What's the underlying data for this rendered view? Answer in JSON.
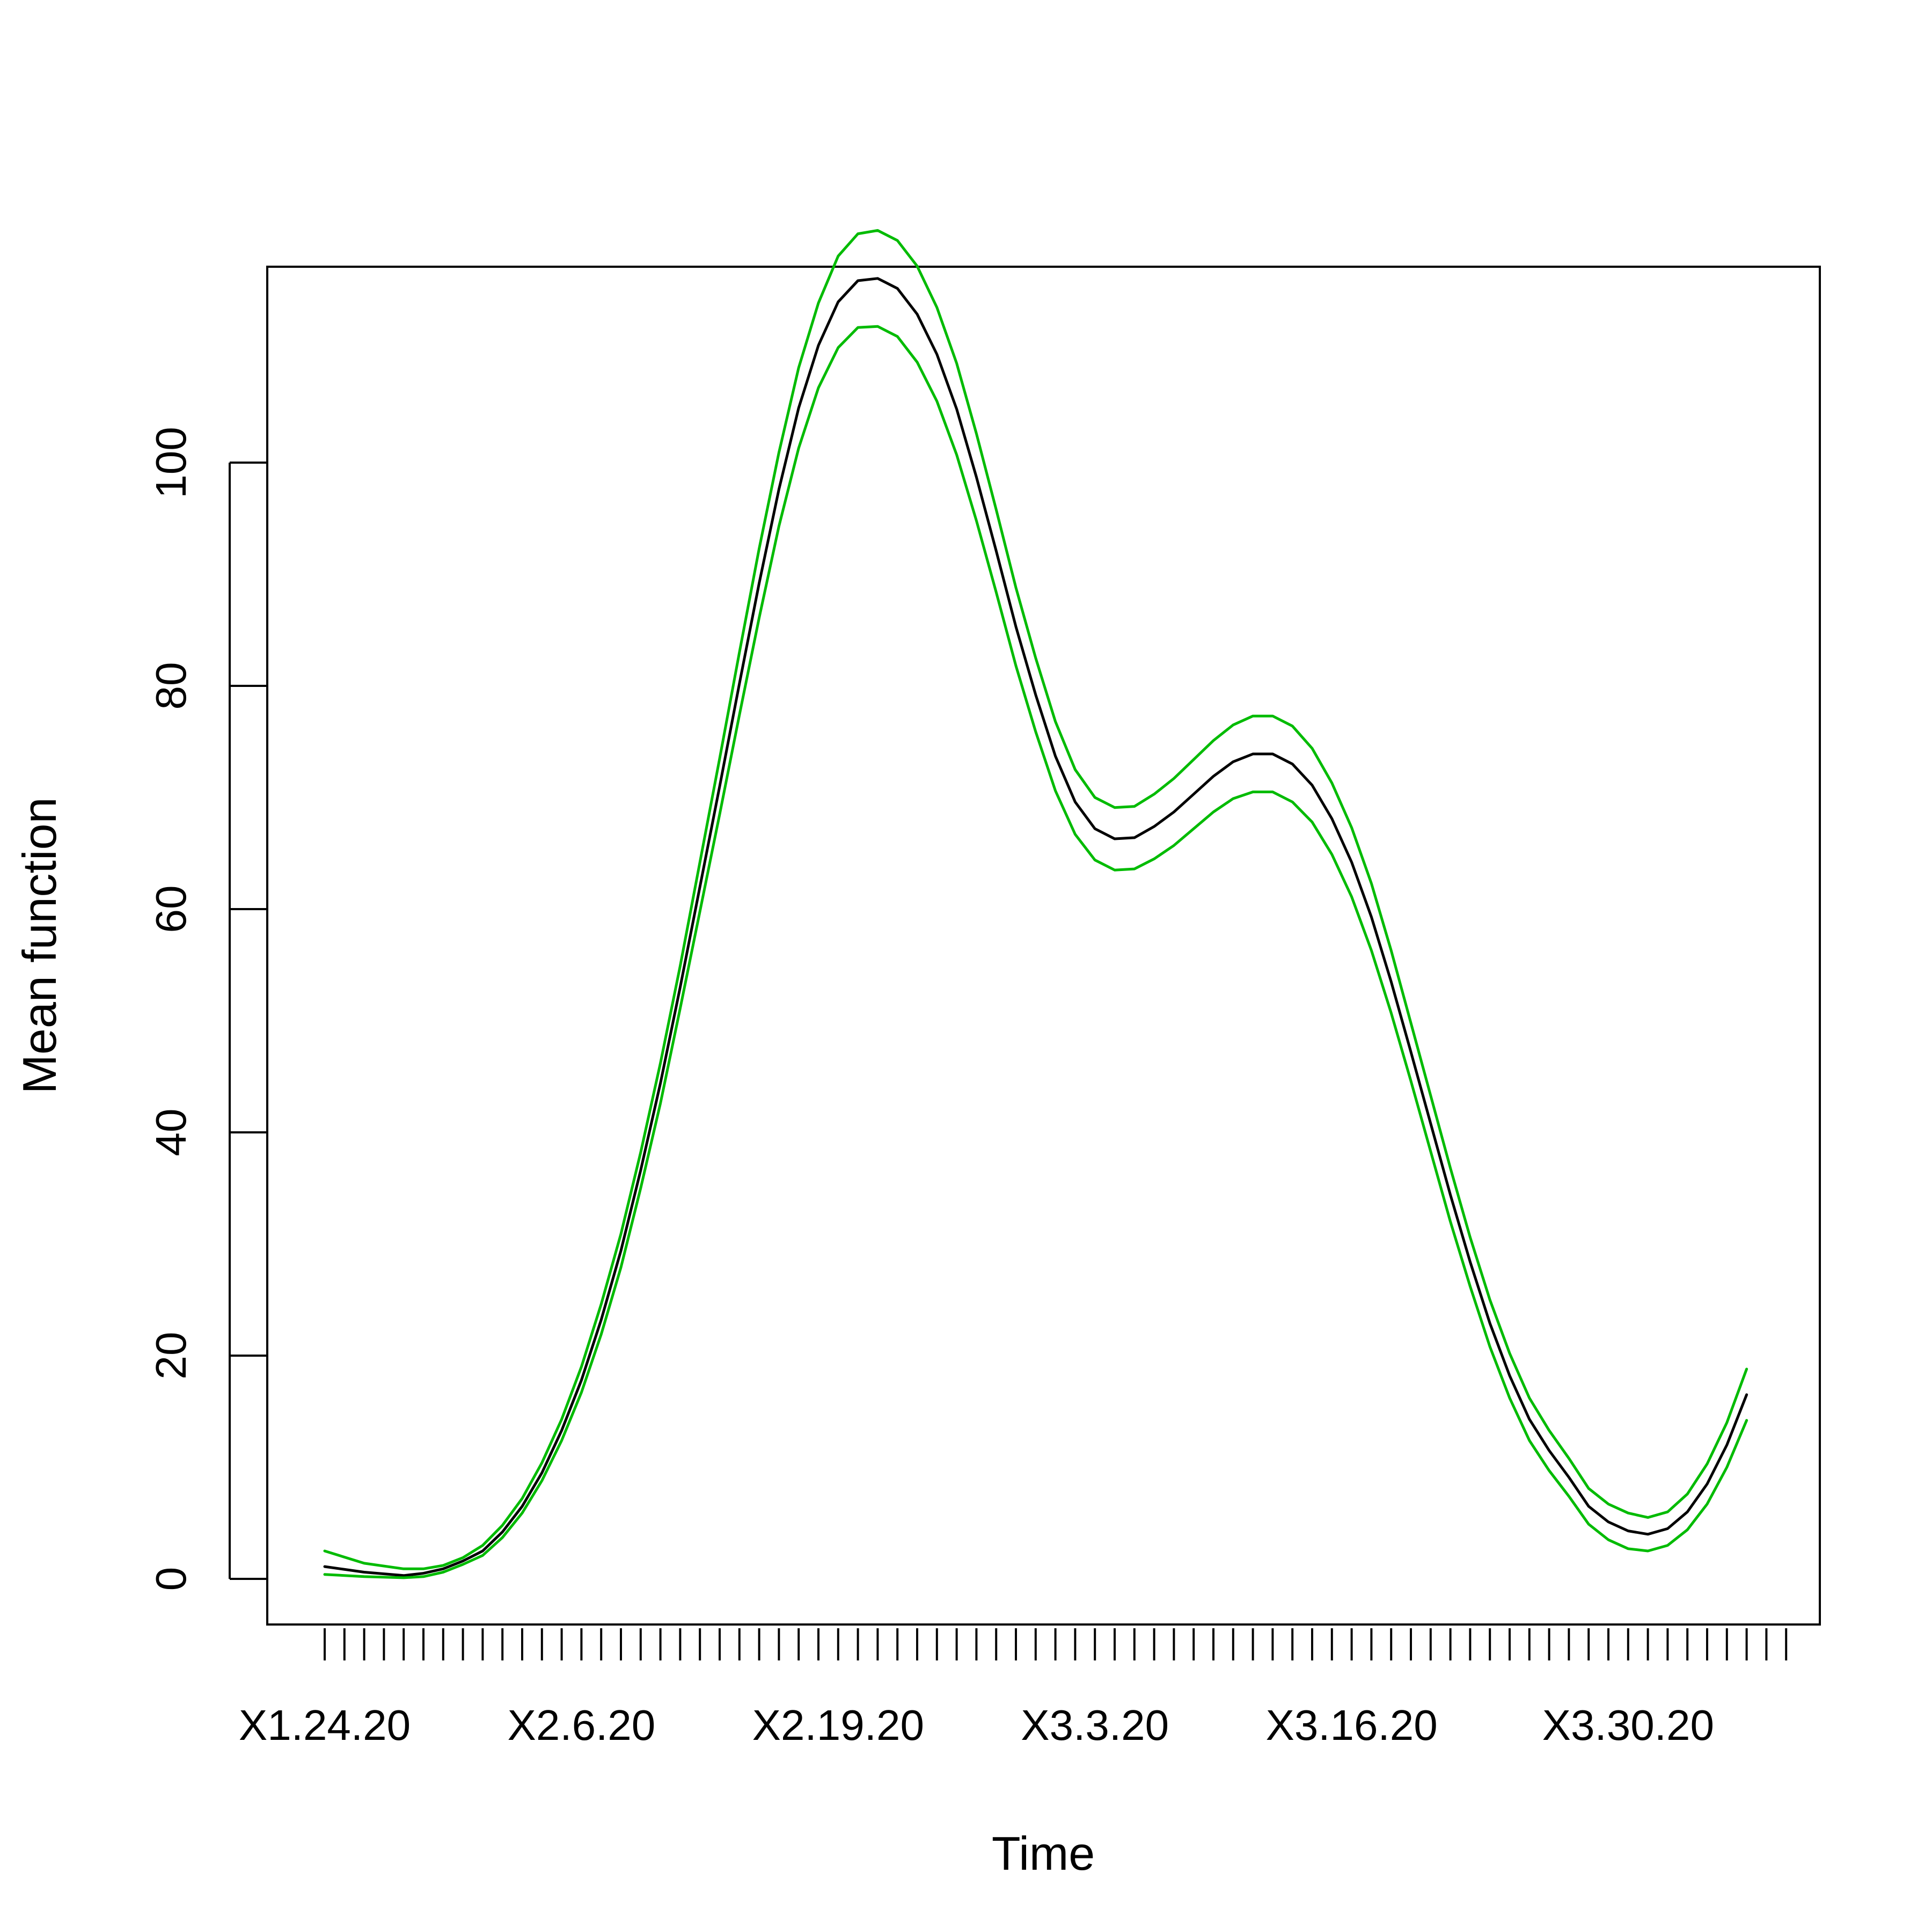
{
  "chart_data": {
    "type": "line",
    "title": "",
    "xlabel": "Time",
    "ylabel": "Mean function",
    "ylim": [
      -4.2,
      117.5
    ],
    "yticks": [
      0,
      20,
      40,
      60,
      80,
      100
    ],
    "x_tick_labels": [
      "X1.24.20",
      "X2.6.20",
      "X2.19.20",
      "X3.3.20",
      "X3.16.20",
      "X3.30.20"
    ],
    "x_tick_label_days": [
      0,
      13,
      26,
      39,
      52,
      66
    ],
    "x_minor_tick_days": [
      0,
      1,
      2,
      3,
      4,
      5,
      6,
      7,
      8,
      9,
      10,
      11,
      12,
      13,
      14,
      15,
      16,
      17,
      18,
      19,
      20,
      21,
      22,
      23,
      24,
      25,
      26,
      27,
      28,
      29,
      30,
      31,
      32,
      33,
      34,
      35,
      36,
      37,
      38,
      39,
      40,
      41,
      42,
      43,
      44,
      45,
      46,
      47,
      48,
      49,
      50,
      51,
      52,
      53,
      54,
      55,
      56,
      57,
      58,
      59,
      60,
      61,
      62,
      63,
      64,
      65,
      66,
      67,
      68,
      69,
      70,
      71,
      72,
      73,
      74
    ],
    "grid": false,
    "series": [
      {
        "role": "mean",
        "color": "#000000",
        "x": [
          0,
          2,
          4,
          5,
          6,
          7,
          8,
          9,
          10,
          11,
          12,
          13,
          14,
          15,
          16,
          17,
          18,
          19,
          20,
          21,
          22,
          23,
          24,
          25,
          26,
          27,
          28,
          29,
          30,
          31,
          32,
          33,
          34,
          35,
          36,
          37,
          38,
          39,
          40,
          41,
          42,
          43,
          44,
          45,
          46,
          47,
          48,
          49,
          50,
          51,
          52,
          53,
          54,
          55,
          56,
          57,
          58,
          59,
          60,
          61,
          62,
          63,
          64,
          65,
          66,
          67,
          68,
          69,
          70,
          71,
          72
        ],
        "values": [
          1.1,
          0.6,
          0.3,
          0.5,
          0.9,
          1.6,
          2.5,
          4.2,
          6.5,
          9.5,
          13.3,
          17.8,
          23.2,
          29.4,
          36.6,
          44.4,
          53.0,
          62.0,
          71.0,
          80.2,
          89.2,
          97.6,
          104.9,
          110.5,
          114.4,
          116.3,
          116.5,
          115.6,
          113.3,
          109.7,
          104.8,
          98.7,
          92.1,
          85.3,
          79.2,
          73.7,
          69.6,
          67.2,
          66.3,
          66.4,
          67.4,
          68.7,
          70.3,
          71.9,
          73.2,
          73.9,
          73.9,
          73.0,
          71.1,
          68.1,
          64.2,
          59.3,
          53.5,
          47.2,
          40.8,
          34.4,
          28.4,
          22.9,
          18.2,
          14.3,
          11.5,
          9.1,
          6.5,
          5.1,
          4.3,
          4.0,
          4.5,
          6.0,
          8.5,
          12.0,
          16.5
        ]
      },
      {
        "role": "upper band",
        "color": "#00bb00",
        "x": [
          0,
          2,
          4,
          5,
          6,
          7,
          8,
          9,
          10,
          11,
          12,
          13,
          14,
          15,
          16,
          17,
          18,
          19,
          20,
          21,
          22,
          23,
          24,
          25,
          26,
          27,
          28,
          29,
          30,
          31,
          32,
          33,
          34,
          35,
          36,
          37,
          38,
          39,
          40,
          41,
          42,
          43,
          44,
          45,
          46,
          47,
          48,
          49,
          50,
          51,
          52,
          53,
          54,
          55,
          56,
          57,
          58,
          59,
          60,
          61,
          62,
          63,
          64,
          65,
          66,
          67,
          68,
          69,
          70,
          71,
          72
        ],
        "values": [
          2.5,
          1.4,
          0.9,
          0.9,
          1.2,
          1.9,
          3.0,
          4.8,
          7.2,
          10.4,
          14.3,
          19.0,
          24.6,
          30.9,
          38.2,
          46.2,
          54.9,
          64.2,
          73.5,
          83.0,
          92.3,
          100.9,
          108.5,
          114.3,
          118.5,
          120.5,
          120.8,
          119.9,
          117.6,
          113.9,
          108.9,
          102.6,
          95.8,
          88.8,
          82.5,
          76.8,
          72.5,
          70.0,
          69.1,
          69.2,
          70.3,
          71.7,
          73.4,
          75.1,
          76.5,
          77.3,
          77.3,
          76.4,
          74.4,
          71.3,
          67.3,
          62.3,
          56.3,
          49.8,
          43.3,
          36.8,
          30.6,
          25.0,
          20.2,
          16.2,
          13.3,
          10.8,
          8.1,
          6.7,
          5.9,
          5.5,
          6.0,
          7.6,
          10.3,
          14.0,
          18.8
        ]
      },
      {
        "role": "lower band",
        "color": "#00bb00",
        "x": [
          0,
          2,
          4,
          5,
          6,
          7,
          8,
          9,
          10,
          11,
          12,
          13,
          14,
          15,
          16,
          17,
          18,
          19,
          20,
          21,
          22,
          23,
          24,
          25,
          26,
          27,
          28,
          29,
          30,
          31,
          32,
          33,
          34,
          35,
          36,
          37,
          38,
          39,
          40,
          41,
          42,
          43,
          44,
          45,
          46,
          47,
          48,
          49,
          50,
          51,
          52,
          53,
          54,
          55,
          56,
          57,
          58,
          59,
          60,
          61,
          62,
          63,
          64,
          65,
          66,
          67,
          68,
          69,
          70,
          71,
          72
        ],
        "values": [
          0.4,
          0.2,
          0.1,
          0.2,
          0.6,
          1.3,
          2.1,
          3.7,
          5.9,
          8.8,
          12.4,
          16.7,
          21.9,
          27.9,
          35.0,
          42.6,
          51.1,
          59.8,
          68.5,
          77.4,
          86.1,
          94.3,
          101.3,
          106.7,
          110.3,
          112.1,
          112.2,
          111.3,
          109.0,
          105.5,
          100.7,
          94.8,
          88.4,
          81.8,
          75.9,
          70.6,
          66.7,
          64.4,
          63.5,
          63.6,
          64.5,
          65.7,
          67.2,
          68.7,
          69.9,
          70.5,
          70.5,
          69.6,
          67.8,
          64.9,
          61.1,
          56.3,
          50.7,
          44.6,
          38.3,
          32.0,
          26.2,
          20.8,
          16.2,
          12.4,
          9.7,
          7.4,
          4.9,
          3.5,
          2.7,
          2.5,
          3.0,
          4.4,
          6.7,
          10.0,
          14.2
        ]
      }
    ]
  }
}
